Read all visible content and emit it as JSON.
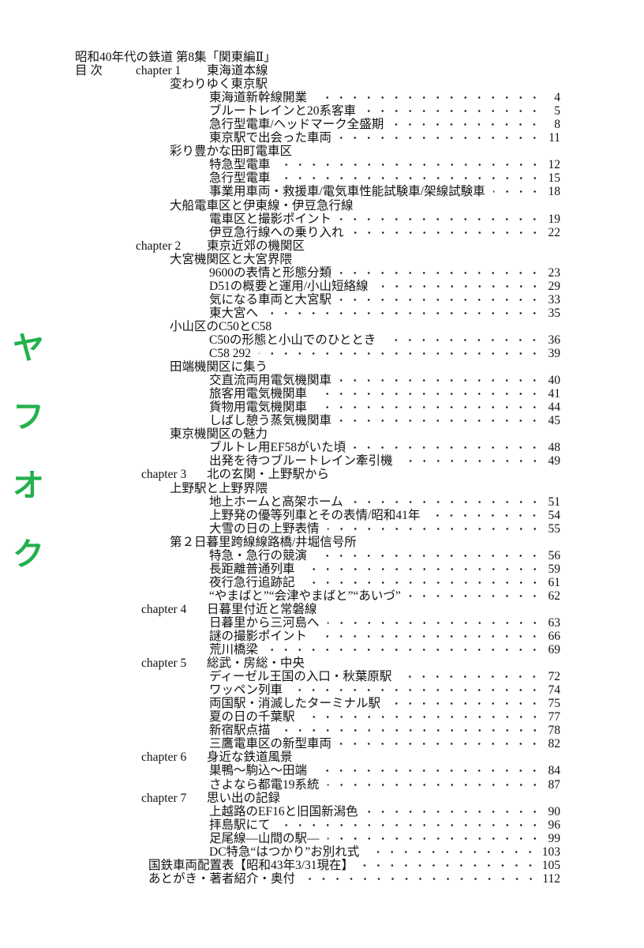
{
  "title": "昭和40年代の鉄道 第8集「関東編Ⅱ」",
  "contents_label": "目 次",
  "watermark": [
    "ヤ",
    "フ",
    "オ",
    "ク"
  ],
  "watermark_color": "#22b14c",
  "chapters": [
    {
      "label": "chapter 1",
      "title": "東海道本線",
      "sections": [
        {
          "title": "変わりゆく東京駅",
          "items": [
            {
              "text": "東海道新幹線開業",
              "page": "4"
            },
            {
              "text": "ブルートレインと20系客車",
              "page": "5"
            },
            {
              "text": "急行型電車/ヘッドマーク全盛期",
              "page": "8"
            },
            {
              "text": "東京駅で出会った車両",
              "page": "11"
            }
          ]
        },
        {
          "title": "彩り豊かな田町電車区",
          "items": [
            {
              "text": "特急型電車",
              "page": "12"
            },
            {
              "text": "急行型電車",
              "page": "15"
            },
            {
              "text": "事業用車両・救援車/電気車性能試験車/架線試験車",
              "page": "18"
            }
          ]
        },
        {
          "title": "大船電車区と伊東線・伊豆急行線",
          "items": [
            {
              "text": "電車区と撮影ポイント",
              "page": "19"
            },
            {
              "text": "伊豆急行線への乗り入れ",
              "page": "22"
            }
          ]
        }
      ]
    },
    {
      "label": "chapter 2",
      "title": "東京近郊の機関区",
      "sections": [
        {
          "title": "大宮機関区と大宮界隈",
          "items": [
            {
              "text": "9600の表情と形態分類",
              "page": "23"
            },
            {
              "text": "D51の概要と運用/小山短絡線",
              "page": "29"
            },
            {
              "text": "気になる車両と大宮駅",
              "page": "33"
            },
            {
              "text": "東大宮へ",
              "page": "35"
            }
          ]
        },
        {
          "title": "小山区のC50とC58",
          "items": [
            {
              "text": "C50の形態と小山でのひととき",
              "page": "36"
            },
            {
              "text": "C58 292",
              "page": "39"
            }
          ]
        },
        {
          "title": "田端機関区に集う",
          "items": [
            {
              "text": "交直流両用電気機関車",
              "page": "40"
            },
            {
              "text": "旅客用電気機関車",
              "page": "41"
            },
            {
              "text": "貨物用電気機関車",
              "page": "44"
            },
            {
              "text": "しばし憩う蒸気機関車",
              "page": "45"
            }
          ]
        },
        {
          "title": "東京機関区の魅力",
          "items": [
            {
              "text": "ブルトレ用EF58がいた頃",
              "page": "48"
            },
            {
              "text": "出発を待つブルートレイン牽引機",
              "page": "49"
            }
          ]
        }
      ]
    },
    {
      "label": "chapter 3",
      "title": "北の玄関・上野駅から",
      "sections": [
        {
          "title": "上野駅と上野界隈",
          "items": [
            {
              "text": "地上ホームと高架ホーム",
              "page": "51"
            },
            {
              "text": "上野発の優等列車とその表情/昭和41年",
              "page": "54"
            },
            {
              "text": "大雪の日の上野表情",
              "page": "55"
            }
          ]
        },
        {
          "title": "第２日暮里跨線線路橋/井堀信号所",
          "items": [
            {
              "text": "特急・急行の競演",
              "page": "56"
            },
            {
              "text": "長距離普通列車",
              "page": "59"
            },
            {
              "text": "夜行急行追跡記",
              "page": "61"
            },
            {
              "text": "“やまばと”“会津やまばと”“あいづ”",
              "page": "62"
            }
          ]
        }
      ]
    },
    {
      "label": "chapter 4",
      "title": "日暮里付近と常磐線",
      "sections": [
        {
          "title": "",
          "items": [
            {
              "text": "日暮里から三河島へ",
              "page": "63"
            },
            {
              "text": "謎の撮影ポイント",
              "page": "66"
            },
            {
              "text": "荒川橋梁",
              "page": "69"
            }
          ]
        }
      ]
    },
    {
      "label": "chapter 5",
      "title": "総武・房総・中央",
      "sections": [
        {
          "title": "",
          "items": [
            {
              "text": "ディーゼル王国の入口・秋葉原駅",
              "page": "72"
            },
            {
              "text": "ワッペン列車",
              "page": "74"
            },
            {
              "text": "両国駅・消滅したターミナル駅",
              "page": "75"
            },
            {
              "text": "夏の日の千葉駅",
              "page": "77"
            },
            {
              "text": "新宿駅点描",
              "page": "78"
            },
            {
              "text": "三鷹電車区の新型車両",
              "page": "82"
            }
          ]
        }
      ]
    },
    {
      "label": "chapter 6",
      "title": "身近な鉄道風景",
      "sections": [
        {
          "title": "",
          "items": [
            {
              "text": "巣鴨〜駒込〜田端",
              "page": "84"
            },
            {
              "text": "さよなら都電19系統",
              "page": "87"
            }
          ]
        }
      ]
    },
    {
      "label": "chapter 7",
      "title": "思い出の記録",
      "sections": [
        {
          "title": "",
          "items": [
            {
              "text": "上越路のEF16と旧国新潟色",
              "page": "90"
            },
            {
              "text": "拝島駅にて",
              "page": "96"
            },
            {
              "text": "足尾線―山間の駅―",
              "page": "99"
            },
            {
              "text": "DC特急“はつかり”お別れ式",
              "page": "103"
            }
          ]
        }
      ]
    }
  ],
  "appendix": [
    {
      "text": "国鉄車両配置表【昭和43年3/31現在】",
      "page": "105"
    },
    {
      "text": "あとがき・著者紹介・奥付",
      "page": "112"
    }
  ]
}
